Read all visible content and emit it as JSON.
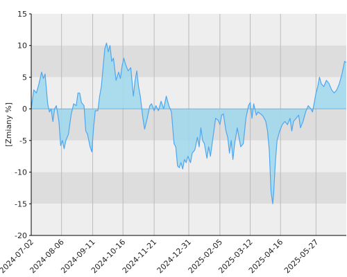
{
  "chart_data": {
    "type": "area",
    "title": "",
    "xlabel": "",
    "ylabel": "[Zmiany %]",
    "ylim": [
      -20,
      15
    ],
    "yticks": [
      15,
      10,
      5,
      0,
      -5,
      -10,
      -15,
      -20
    ],
    "x_tick_labels": [
      "2024-07-02",
      "2024-08-06",
      "2024-09-11",
      "2024-10-16",
      "2024-11-21",
      "2024-12-31",
      "2025-02-05",
      "2025-03-12",
      "2025-04-16",
      "2025-05-27"
    ],
    "x_range": [
      "2024-07-02",
      "2025-07-01"
    ],
    "grid": true,
    "colors": {
      "band_light": "#eeeeee",
      "band_dark": "#dddddd",
      "vgrid": "#bbbbbb",
      "line": "#4da6f0",
      "fill": "#9fd8ec",
      "axis": "#000000"
    },
    "series": [
      {
        "values": [
          [
            "2024-07-02",
            0.0
          ],
          [
            "2024-07-05",
            3.0
          ],
          [
            "2024-07-08",
            2.5
          ],
          [
            "2024-07-11",
            4.0
          ],
          [
            "2024-07-14",
            5.8
          ],
          [
            "2024-07-16",
            4.8
          ],
          [
            "2024-07-18",
            5.5
          ],
          [
            "2024-07-21",
            0.8
          ],
          [
            "2024-07-23",
            -0.5
          ],
          [
            "2024-07-25",
            0.0
          ],
          [
            "2024-07-27",
            -2.0
          ],
          [
            "2024-07-29",
            0.0
          ],
          [
            "2024-07-31",
            0.5
          ],
          [
            "2024-08-03",
            -2.0
          ],
          [
            "2024-08-05",
            -5.8
          ],
          [
            "2024-08-07",
            -5.0
          ],
          [
            "2024-08-09",
            -6.3
          ],
          [
            "2024-08-11",
            -5.0
          ],
          [
            "2024-08-14",
            -4.0
          ],
          [
            "2024-08-17",
            -1.0
          ],
          [
            "2024-08-20",
            0.8
          ],
          [
            "2024-08-23",
            0.5
          ],
          [
            "2024-08-25",
            2.5
          ],
          [
            "2024-08-27",
            2.5
          ],
          [
            "2024-08-29",
            1.0
          ],
          [
            "2024-09-01",
            0.5
          ],
          [
            "2024-09-03",
            -3.5
          ],
          [
            "2024-09-05",
            -4.0
          ],
          [
            "2024-09-08",
            -6.0
          ],
          [
            "2024-09-10",
            -6.8
          ],
          [
            "2024-09-12",
            -3.0
          ],
          [
            "2024-09-14",
            -0.3
          ],
          [
            "2024-09-17",
            -0.3
          ],
          [
            "2024-09-19",
            2.0
          ],
          [
            "2024-09-21",
            3.5
          ],
          [
            "2024-09-23",
            6.5
          ],
          [
            "2024-09-25",
            9.5
          ],
          [
            "2024-09-27",
            10.4
          ],
          [
            "2024-09-29",
            9.0
          ],
          [
            "2024-10-01",
            10.0
          ],
          [
            "2024-10-03",
            7.5
          ],
          [
            "2024-10-05",
            8.0
          ],
          [
            "2024-10-08",
            4.5
          ],
          [
            "2024-10-11",
            5.8
          ],
          [
            "2024-10-13",
            4.8
          ],
          [
            "2024-10-15",
            6.8
          ],
          [
            "2024-10-17",
            8.0
          ],
          [
            "2024-10-19",
            7.0
          ],
          [
            "2024-10-22",
            6.0
          ],
          [
            "2024-10-25",
            6.5
          ],
          [
            "2024-10-28",
            2.0
          ],
          [
            "2024-10-30",
            4.5
          ],
          [
            "2024-11-01",
            6.0
          ],
          [
            "2024-11-03",
            3.5
          ],
          [
            "2024-11-05",
            2.0
          ],
          [
            "2024-11-08",
            -1.5
          ],
          [
            "2024-11-10",
            -3.2
          ],
          [
            "2024-11-13",
            -1.5
          ],
          [
            "2024-11-16",
            0.5
          ],
          [
            "2024-11-18",
            0.8
          ],
          [
            "2024-11-21",
            -0.3
          ],
          [
            "2024-11-23",
            0.5
          ],
          [
            "2024-11-26",
            -0.3
          ],
          [
            "2024-11-29",
            1.2
          ],
          [
            "2024-12-02",
            0.0
          ],
          [
            "2024-12-05",
            2.0
          ],
          [
            "2024-12-08",
            0.5
          ],
          [
            "2024-12-11",
            -0.5
          ],
          [
            "2024-12-14",
            -5.5
          ],
          [
            "2024-12-16",
            -6.0
          ],
          [
            "2024-12-18",
            -9.0
          ],
          [
            "2024-12-20",
            -9.3
          ],
          [
            "2024-12-22",
            -8.5
          ],
          [
            "2024-12-24",
            -9.5
          ],
          [
            "2024-12-26",
            -8.0
          ],
          [
            "2024-12-28",
            -8.5
          ],
          [
            "2024-12-30",
            -7.5
          ],
          [
            "2025-01-02",
            -8.5
          ],
          [
            "2025-01-04",
            -7.0
          ],
          [
            "2025-01-07",
            -6.5
          ],
          [
            "2025-01-10",
            -4.5
          ],
          [
            "2025-01-12",
            -6.0
          ],
          [
            "2025-01-14",
            -3.0
          ],
          [
            "2025-01-16",
            -5.0
          ],
          [
            "2025-01-18",
            -5.5
          ],
          [
            "2025-01-21",
            -7.8
          ],
          [
            "2025-01-23",
            -6.0
          ],
          [
            "2025-01-25",
            -7.5
          ],
          [
            "2025-01-27",
            -5.5
          ],
          [
            "2025-01-29",
            -3.5
          ],
          [
            "2025-01-31",
            -1.5
          ],
          [
            "2025-02-03",
            -1.8
          ],
          [
            "2025-02-05",
            -2.5
          ],
          [
            "2025-02-07",
            -1.0
          ],
          [
            "2025-02-09",
            -0.8
          ],
          [
            "2025-02-12",
            -3.5
          ],
          [
            "2025-02-14",
            -4.5
          ],
          [
            "2025-02-16",
            -7.0
          ],
          [
            "2025-02-18",
            -5.0
          ],
          [
            "2025-02-20",
            -8.0
          ],
          [
            "2025-02-22",
            -5.5
          ],
          [
            "2025-02-25",
            -3.0
          ],
          [
            "2025-02-27",
            -4.5
          ],
          [
            "2025-03-01",
            -6.0
          ],
          [
            "2025-03-04",
            -5.5
          ],
          [
            "2025-03-07",
            -1.5
          ],
          [
            "2025-03-10",
            0.5
          ],
          [
            "2025-03-12",
            1.0
          ],
          [
            "2025-03-14",
            -1.5
          ],
          [
            "2025-03-16",
            0.8
          ],
          [
            "2025-03-19",
            -1.0
          ],
          [
            "2025-03-21",
            -0.5
          ],
          [
            "2025-03-24",
            -0.8
          ],
          [
            "2025-03-27",
            -1.2
          ],
          [
            "2025-03-30",
            -2.0
          ],
          [
            "2025-04-01",
            -3.5
          ],
          [
            "2025-04-03",
            -6.5
          ],
          [
            "2025-04-05",
            -13.0
          ],
          [
            "2025-04-07",
            -15.0
          ],
          [
            "2025-04-08",
            -13.5
          ],
          [
            "2025-04-10",
            -8.5
          ],
          [
            "2025-04-12",
            -5.0
          ],
          [
            "2025-04-15",
            -3.5
          ],
          [
            "2025-04-18",
            -2.5
          ],
          [
            "2025-04-21",
            -2.0
          ],
          [
            "2025-04-24",
            -2.5
          ],
          [
            "2025-04-27",
            -1.5
          ],
          [
            "2025-04-29",
            -3.5
          ],
          [
            "2025-05-01",
            -2.0
          ],
          [
            "2025-05-04",
            -1.5
          ],
          [
            "2025-05-07",
            -1.0
          ],
          [
            "2025-05-09",
            -3.0
          ],
          [
            "2025-05-12",
            -2.0
          ],
          [
            "2025-05-15",
            -0.5
          ],
          [
            "2025-05-18",
            0.5
          ],
          [
            "2025-05-21",
            0.0
          ],
          [
            "2025-05-23",
            -0.5
          ],
          [
            "2025-05-25",
            1.0
          ],
          [
            "2025-05-27",
            2.5
          ],
          [
            "2025-05-29",
            3.5
          ],
          [
            "2025-05-31",
            5.0
          ],
          [
            "2025-06-02",
            4.0
          ],
          [
            "2025-06-05",
            3.5
          ],
          [
            "2025-06-08",
            4.5
          ],
          [
            "2025-06-11",
            4.0
          ],
          [
            "2025-06-14",
            3.0
          ],
          [
            "2025-06-17",
            2.5
          ],
          [
            "2025-06-20",
            3.0
          ],
          [
            "2025-06-23",
            4.0
          ],
          [
            "2025-06-26",
            5.5
          ],
          [
            "2025-06-29",
            7.5
          ],
          [
            "2025-07-01",
            7.3
          ]
        ]
      }
    ]
  }
}
